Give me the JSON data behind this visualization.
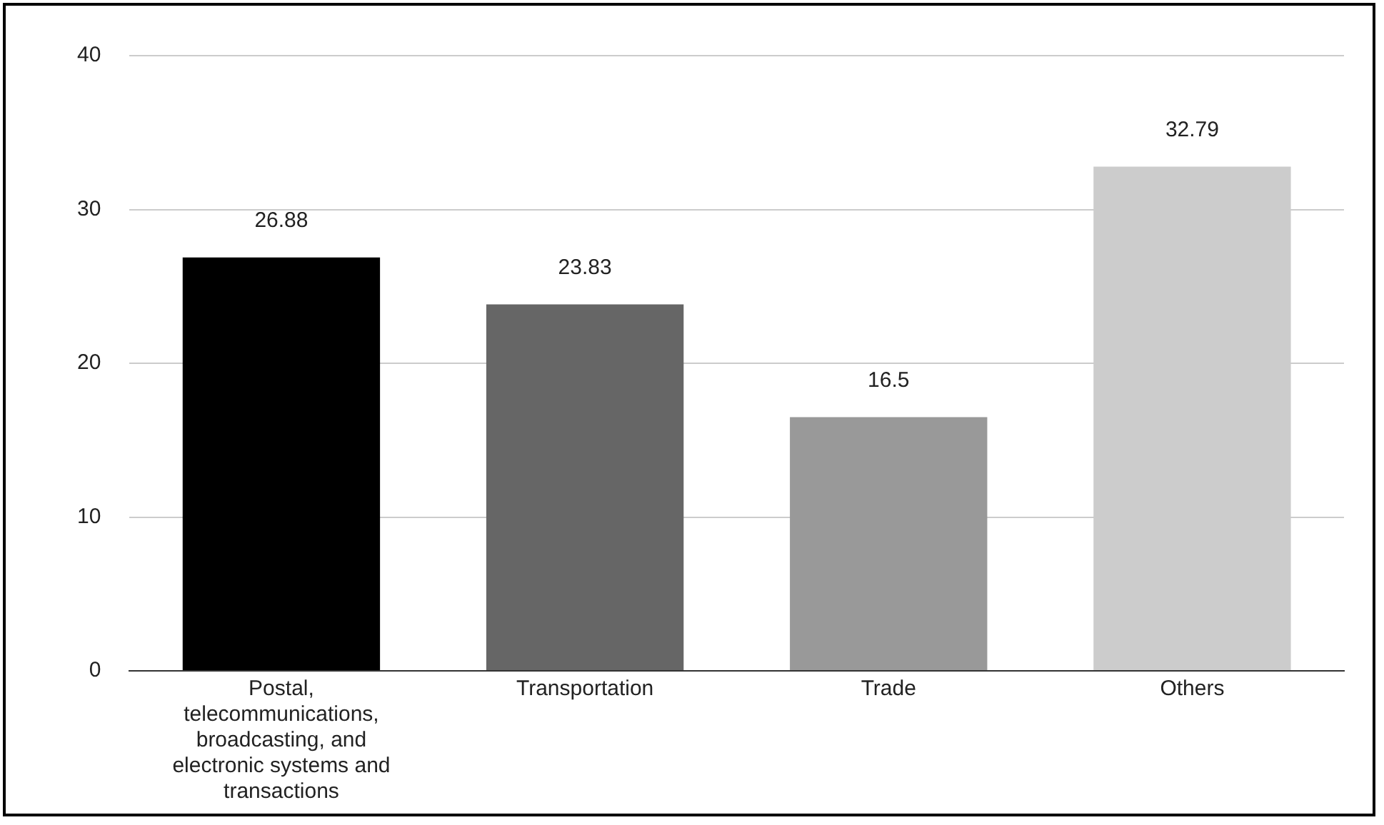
{
  "chart_data": {
    "type": "bar",
    "categories": [
      "Postal, telecommunications, broadcasting, and electronic systems and transactions",
      "Transportation",
      "Trade",
      "Others"
    ],
    "values": [
      26.88,
      23.83,
      16.5,
      32.79
    ],
    "colors": [
      "#000000",
      "#666666",
      "#999999",
      "#cccccc"
    ],
    "ylim": [
      0,
      40
    ],
    "yticks": [
      0,
      10,
      20,
      30,
      40
    ],
    "grid": "y",
    "data_labels": true,
    "legend": false
  }
}
